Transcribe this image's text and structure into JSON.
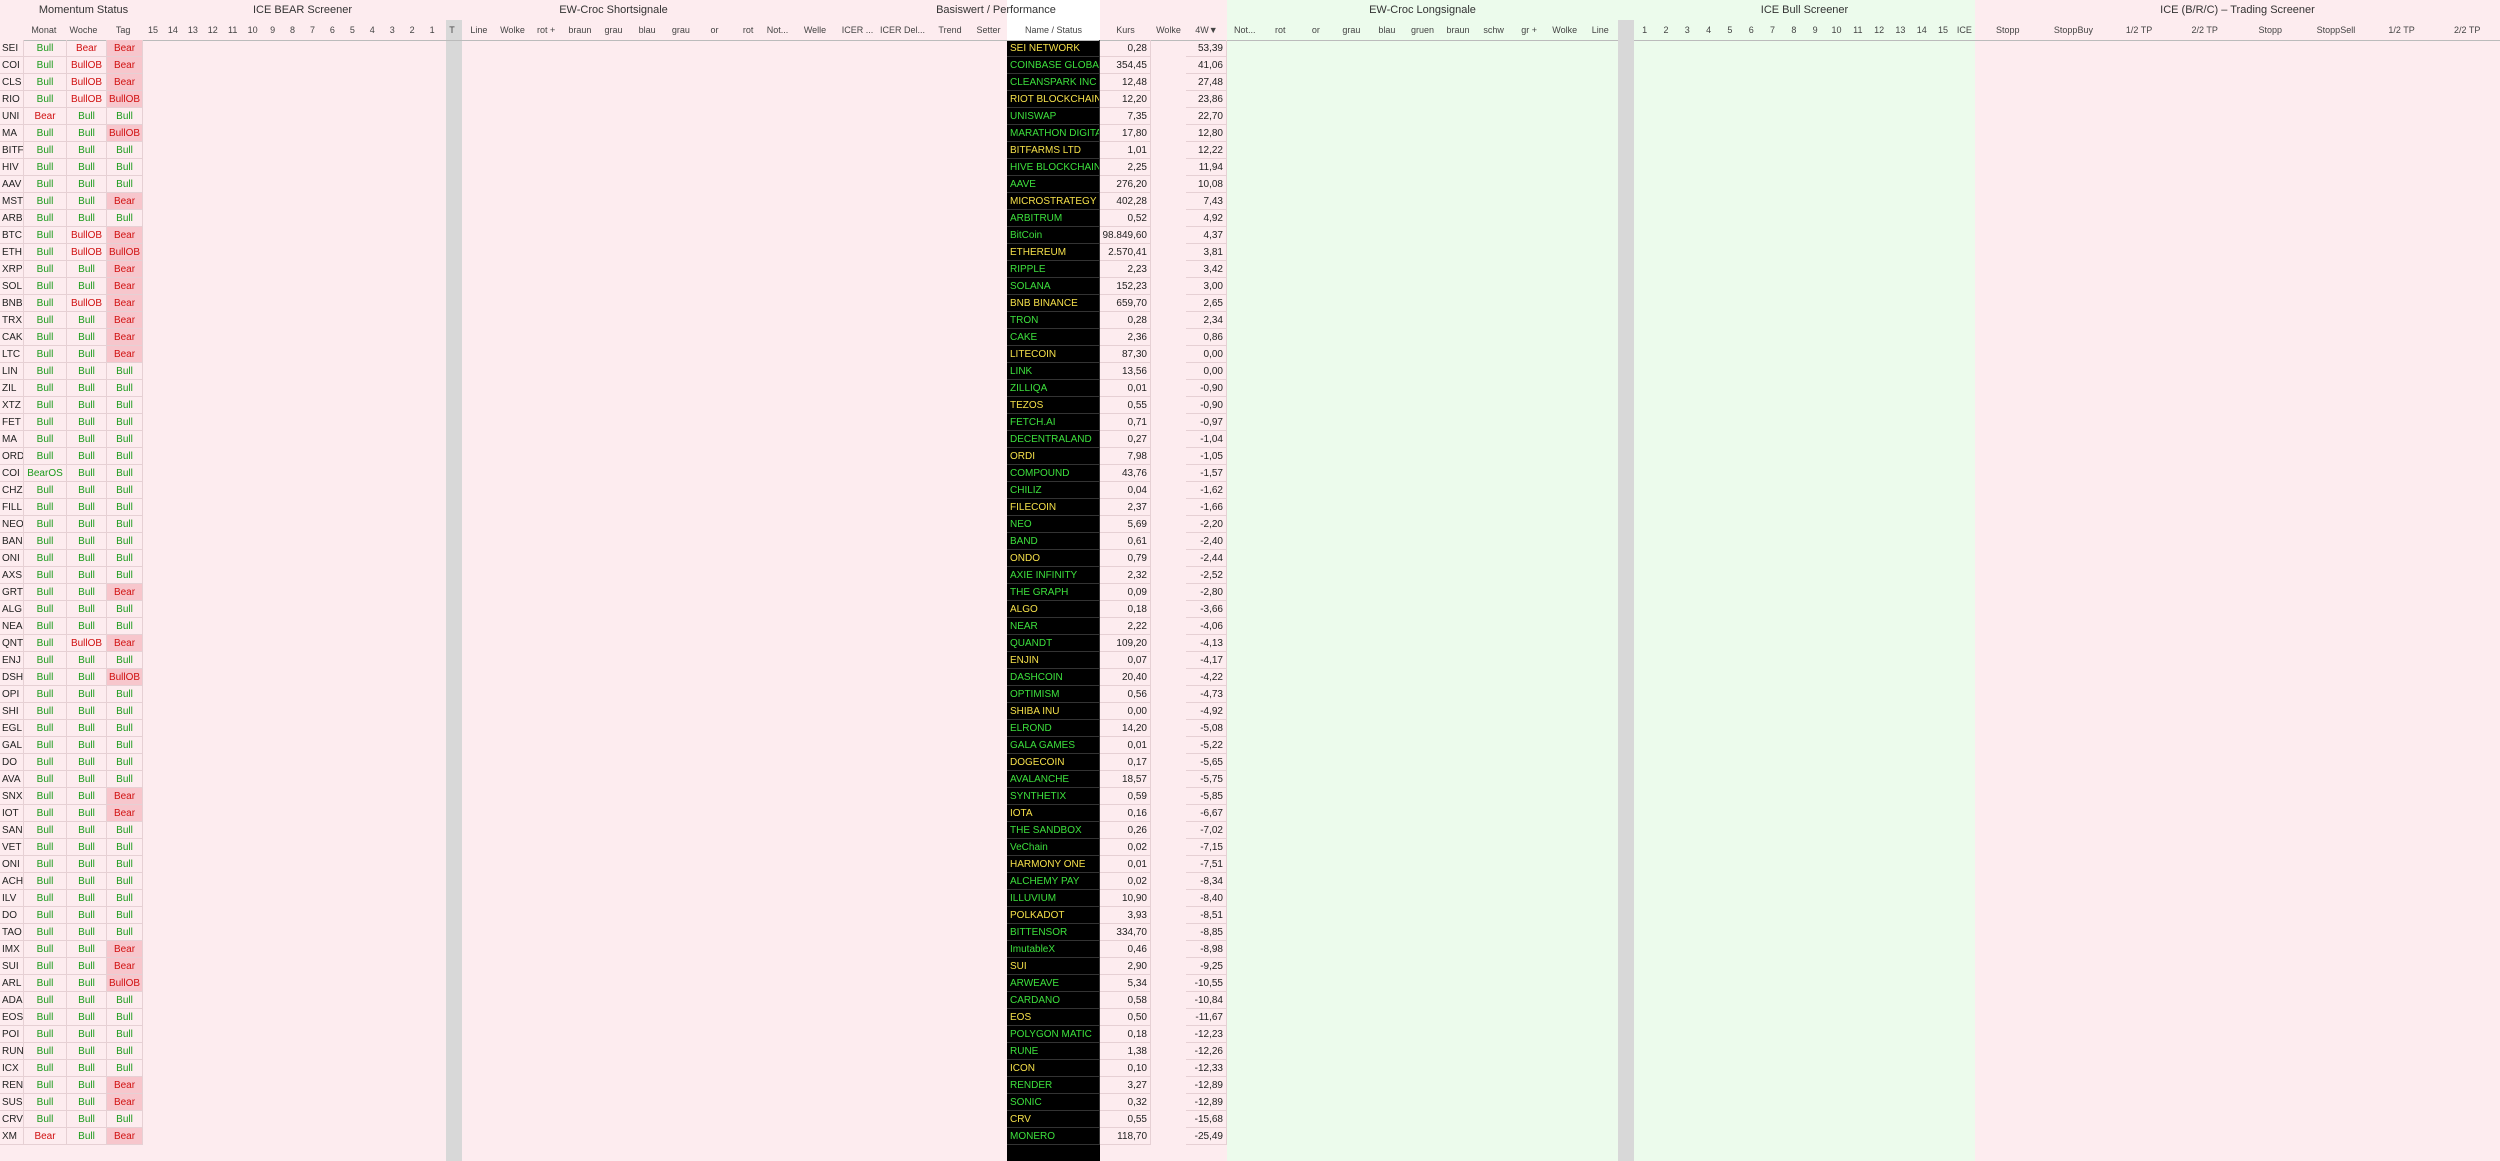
{
  "header": {
    "groups": [
      {
        "title": "Momentum Status",
        "columns": [
          "Monat",
          "Woche",
          "Tag"
        ]
      },
      {
        "title": "ICE BEAR Screener",
        "columns": [
          "15",
          "14",
          "13",
          "12",
          "11",
          "10",
          "9",
          "8",
          "7",
          "6",
          "5",
          "4",
          "3",
          "2",
          "1",
          "T"
        ]
      },
      {
        "title": "EW-Croc Shortsignale",
        "columns": [
          "Line",
          "Wolke",
          "rot +",
          "braun",
          "grau",
          "blau",
          "grau",
          "or",
          "rot"
        ]
      },
      {
        "title": "Basiswert / Performance",
        "columns": [
          "Not...",
          "Welle",
          "ICER ...",
          "ICER Del...",
          "Trend",
          "Setter",
          "Name / Status",
          "Kurs",
          "Wolke",
          "4W▼"
        ]
      },
      {
        "title": "EW-Croc Longsignale",
        "columns": [
          "Not...",
          "rot",
          "or",
          "grau",
          "blau",
          "gruen",
          "braun",
          "schw",
          "gr +",
          "Wolke",
          "Line"
        ]
      },
      {
        "title": "ICE Bull Screener",
        "columns": [
          "1",
          "2",
          "3",
          "4",
          "5",
          "6",
          "7",
          "8",
          "9",
          "10",
          "11",
          "12",
          "13",
          "14",
          "15",
          "ICE"
        ]
      },
      {
        "title": "ICE (B/R/C) – Trading Screener",
        "columns": [
          "Stopp",
          "StoppBuy",
          "1/2 TP",
          "2/2 TP",
          "Stopp",
          "StoppSell",
          "1/2 TP",
          "2/2 TP"
        ]
      }
    ]
  },
  "table": {
    "rows": [
      [
        "SEI",
        "Bull",
        "Bear",
        "Bear",
        "SEI NETWORK",
        "0,28",
        "53,39"
      ],
      [
        "COI",
        "Bull",
        "BullOB",
        "Bear",
        "COINBASE GLOBAL",
        "354,45",
        "41,06"
      ],
      [
        "CLS",
        "Bull",
        "BullOB",
        "Bear",
        "CLEANSPARK INC",
        "12,48",
        "27,48"
      ],
      [
        "RIO",
        "Bull",
        "BullOB",
        "BullOB",
        "RIOT BLOCKCHAIN",
        "12,20",
        "23,86"
      ],
      [
        "UNI",
        "Bear",
        "Bull",
        "Bull",
        "UNISWAP",
        "7,35",
        "22,70"
      ],
      [
        "MA",
        "Bull",
        "Bull",
        "BullOB",
        "MARATHON DIGITA",
        "17,80",
        "12,80"
      ],
      [
        "BITF",
        "Bull",
        "Bull",
        "Bull",
        "BITFARMS LTD",
        "1,01",
        "12,22"
      ],
      [
        "HIV",
        "Bull",
        "Bull",
        "Bull",
        "HIVE BLOCKCHAIN",
        "2,25",
        "11,94"
      ],
      [
        "AAV",
        "Bull",
        "Bull",
        "Bull",
        "AAVE",
        "276,20",
        "10,08"
      ],
      [
        "MST",
        "Bull",
        "Bull",
        "Bear",
        "MICROSTRATEGY",
        "402,28",
        "7,43"
      ],
      [
        "ARB",
        "Bull",
        "Bull",
        "Bull",
        "ARBITRUM",
        "0,52",
        "4,92"
      ],
      [
        "BTC",
        "Bull",
        "BullOB",
        "Bear",
        "BitCoin",
        "98.849,60",
        "4,37"
      ],
      [
        "ETH",
        "Bull",
        "BullOB",
        "BullOB",
        "ETHEREUM",
        "2.570,41",
        "3,81"
      ],
      [
        "XRP",
        "Bull",
        "Bull",
        "Bear",
        "RIPPLE",
        "2,23",
        "3,42"
      ],
      [
        "SOL",
        "Bull",
        "Bull",
        "Bear",
        "SOLANA",
        "152,23",
        "3,00"
      ],
      [
        "BNB",
        "Bull",
        "BullOB",
        "Bear",
        "BNB BINANCE",
        "659,70",
        "2,65"
      ],
      [
        "TRX",
        "Bull",
        "Bull",
        "Bear",
        "TRON",
        "0,28",
        "2,34"
      ],
      [
        "CAK",
        "Bull",
        "Bull",
        "Bear",
        "CAKE",
        "2,36",
        "0,86"
      ],
      [
        "LTC",
        "Bull",
        "Bull",
        "Bear",
        "LITECOIN",
        "87,30",
        "0,00"
      ],
      [
        "LIN",
        "Bull",
        "Bull",
        "Bull",
        "LINK",
        "13,56",
        "0,00"
      ],
      [
        "ZIL",
        "Bull",
        "Bull",
        "Bull",
        "ZILLIQA",
        "0,01",
        "-0,90"
      ],
      [
        "XTZ",
        "Bull",
        "Bull",
        "Bull",
        "TEZOS",
        "0,55",
        "-0,90"
      ],
      [
        "FET",
        "Bull",
        "Bull",
        "Bull",
        "FETCH.AI",
        "0,71",
        "-0,97"
      ],
      [
        "MA",
        "Bull",
        "Bull",
        "Bull",
        "DECENTRALAND",
        "0,27",
        "-1,04"
      ],
      [
        "ORD",
        "Bull",
        "Bull",
        "Bull",
        "ORDI",
        "7,98",
        "-1,05"
      ],
      [
        "COI",
        "BearOS",
        "Bull",
        "Bull",
        "COMPOUND",
        "43,76",
        "-1,57"
      ],
      [
        "CHZ",
        "Bull",
        "Bull",
        "Bull",
        "CHILIZ",
        "0,04",
        "-1,62"
      ],
      [
        "FILL",
        "Bull",
        "Bull",
        "Bull",
        "FILECOIN",
        "2,37",
        "-1,66"
      ],
      [
        "NEO",
        "Bull",
        "Bull",
        "Bull",
        "NEO",
        "5,69",
        "-2,20"
      ],
      [
        "BAN",
        "Bull",
        "Bull",
        "Bull",
        "BAND",
        "0,61",
        "-2,40"
      ],
      [
        "ONI",
        "Bull",
        "Bull",
        "Bull",
        "ONDO",
        "0,79",
        "-2,44"
      ],
      [
        "AXS",
        "Bull",
        "Bull",
        "Bull",
        "AXIE INFINITY",
        "2,32",
        "-2,52"
      ],
      [
        "GRT",
        "Bull",
        "Bull",
        "Bear",
        "THE GRAPH",
        "0,09",
        "-2,80"
      ],
      [
        "ALG",
        "Bull",
        "Bull",
        "Bull",
        "ALGO",
        "0,18",
        "-3,66"
      ],
      [
        "NEA",
        "Bull",
        "Bull",
        "Bull",
        "NEAR",
        "2,22",
        "-4,06"
      ],
      [
        "QNT",
        "Bull",
        "BullOB",
        "Bear",
        "QUANDT",
        "109,20",
        "-4,13"
      ],
      [
        "ENJ",
        "Bull",
        "Bull",
        "Bull",
        "ENJIN",
        "0,07",
        "-4,17"
      ],
      [
        "DSH",
        "Bull",
        "Bull",
        "BullOB",
        "DASHCOIN",
        "20,40",
        "-4,22"
      ],
      [
        "OPI",
        "Bull",
        "Bull",
        "Bull",
        "OPTIMISM",
        "0,56",
        "-4,73"
      ],
      [
        "SHI",
        "Bull",
        "Bull",
        "Bull",
        "SHIBA INU",
        "0,00",
        "-4,92"
      ],
      [
        "EGL",
        "Bull",
        "Bull",
        "Bull",
        "ELROND",
        "14,20",
        "-5,08"
      ],
      [
        "GAL",
        "Bull",
        "Bull",
        "Bull",
        "GALA GAMES",
        "0,01",
        "-5,22"
      ],
      [
        "DO",
        "Bull",
        "Bull",
        "Bull",
        "DOGECOIN",
        "0,17",
        "-5,65"
      ],
      [
        "AVA",
        "Bull",
        "Bull",
        "Bull",
        "AVALANCHE",
        "18,57",
        "-5,75"
      ],
      [
        "SNX",
        "Bull",
        "Bull",
        "Bear",
        "SYNTHETIX",
        "0,59",
        "-5,85"
      ],
      [
        "IOT",
        "Bull",
        "Bull",
        "Bear",
        "IOTA",
        "0,16",
        "-6,67"
      ],
      [
        "SAN",
        "Bull",
        "Bull",
        "Bull",
        "THE SANDBOX",
        "0,26",
        "-7,02"
      ],
      [
        "VET",
        "Bull",
        "Bull",
        "Bull",
        "VeChain",
        "0,02",
        "-7,15"
      ],
      [
        "ONI",
        "Bull",
        "Bull",
        "Bull",
        "HARMONY ONE",
        "0,01",
        "-7,51"
      ],
      [
        "ACH",
        "Bull",
        "Bull",
        "Bull",
        "ALCHEMY PAY",
        "0,02",
        "-8,34"
      ],
      [
        "ILV",
        "Bull",
        "Bull",
        "Bull",
        "ILLUVIUM",
        "10,90",
        "-8,40"
      ],
      [
        "DO",
        "Bull",
        "Bull",
        "Bull",
        "POLKADOT",
        "3,93",
        "-8,51"
      ],
      [
        "TAO",
        "Bull",
        "Bull",
        "Bull",
        "BITTENSOR",
        "334,70",
        "-8,85"
      ],
      [
        "IMX",
        "Bull",
        "Bull",
        "Bear",
        "ImutableX",
        "0,46",
        "-8,98"
      ],
      [
        "SUI",
        "Bull",
        "Bull",
        "Bear",
        "SUI",
        "2,90",
        "-9,25"
      ],
      [
        "ARL",
        "Bull",
        "Bull",
        "BullOB",
        "ARWEAVE",
        "5,34",
        "-10,55"
      ],
      [
        "ADA",
        "Bull",
        "Bull",
        "Bull",
        "CARDANO",
        "0,58",
        "-10,84"
      ],
      [
        "EOS",
        "Bull",
        "Bull",
        "Bull",
        "EOS",
        "0,50",
        "-11,67"
      ],
      [
        "POI",
        "Bull",
        "Bull",
        "Bull",
        "POLYGON MATIC",
        "0,18",
        "-12,23"
      ],
      [
        "RUN",
        "Bull",
        "Bull",
        "Bull",
        "RUNE",
        "1,38",
        "-12,26"
      ],
      [
        "ICX",
        "Bull",
        "Bull",
        "Bull",
        "ICON",
        "0,10",
        "-12,33"
      ],
      [
        "REN",
        "Bull",
        "Bull",
        "Bear",
        "RENDER",
        "3,27",
        "-12,89"
      ],
      [
        "SUS",
        "Bull",
        "Bull",
        "Bear",
        "SONIC",
        "0,32",
        "-12,89"
      ],
      [
        "CRV",
        "Bull",
        "Bull",
        "Bull",
        "CRV",
        "0,55",
        "-15,68"
      ],
      [
        "XM",
        "Bear",
        "Bull",
        "Bear",
        "MONERO",
        "118,70",
        "-25,49"
      ]
    ]
  }
}
